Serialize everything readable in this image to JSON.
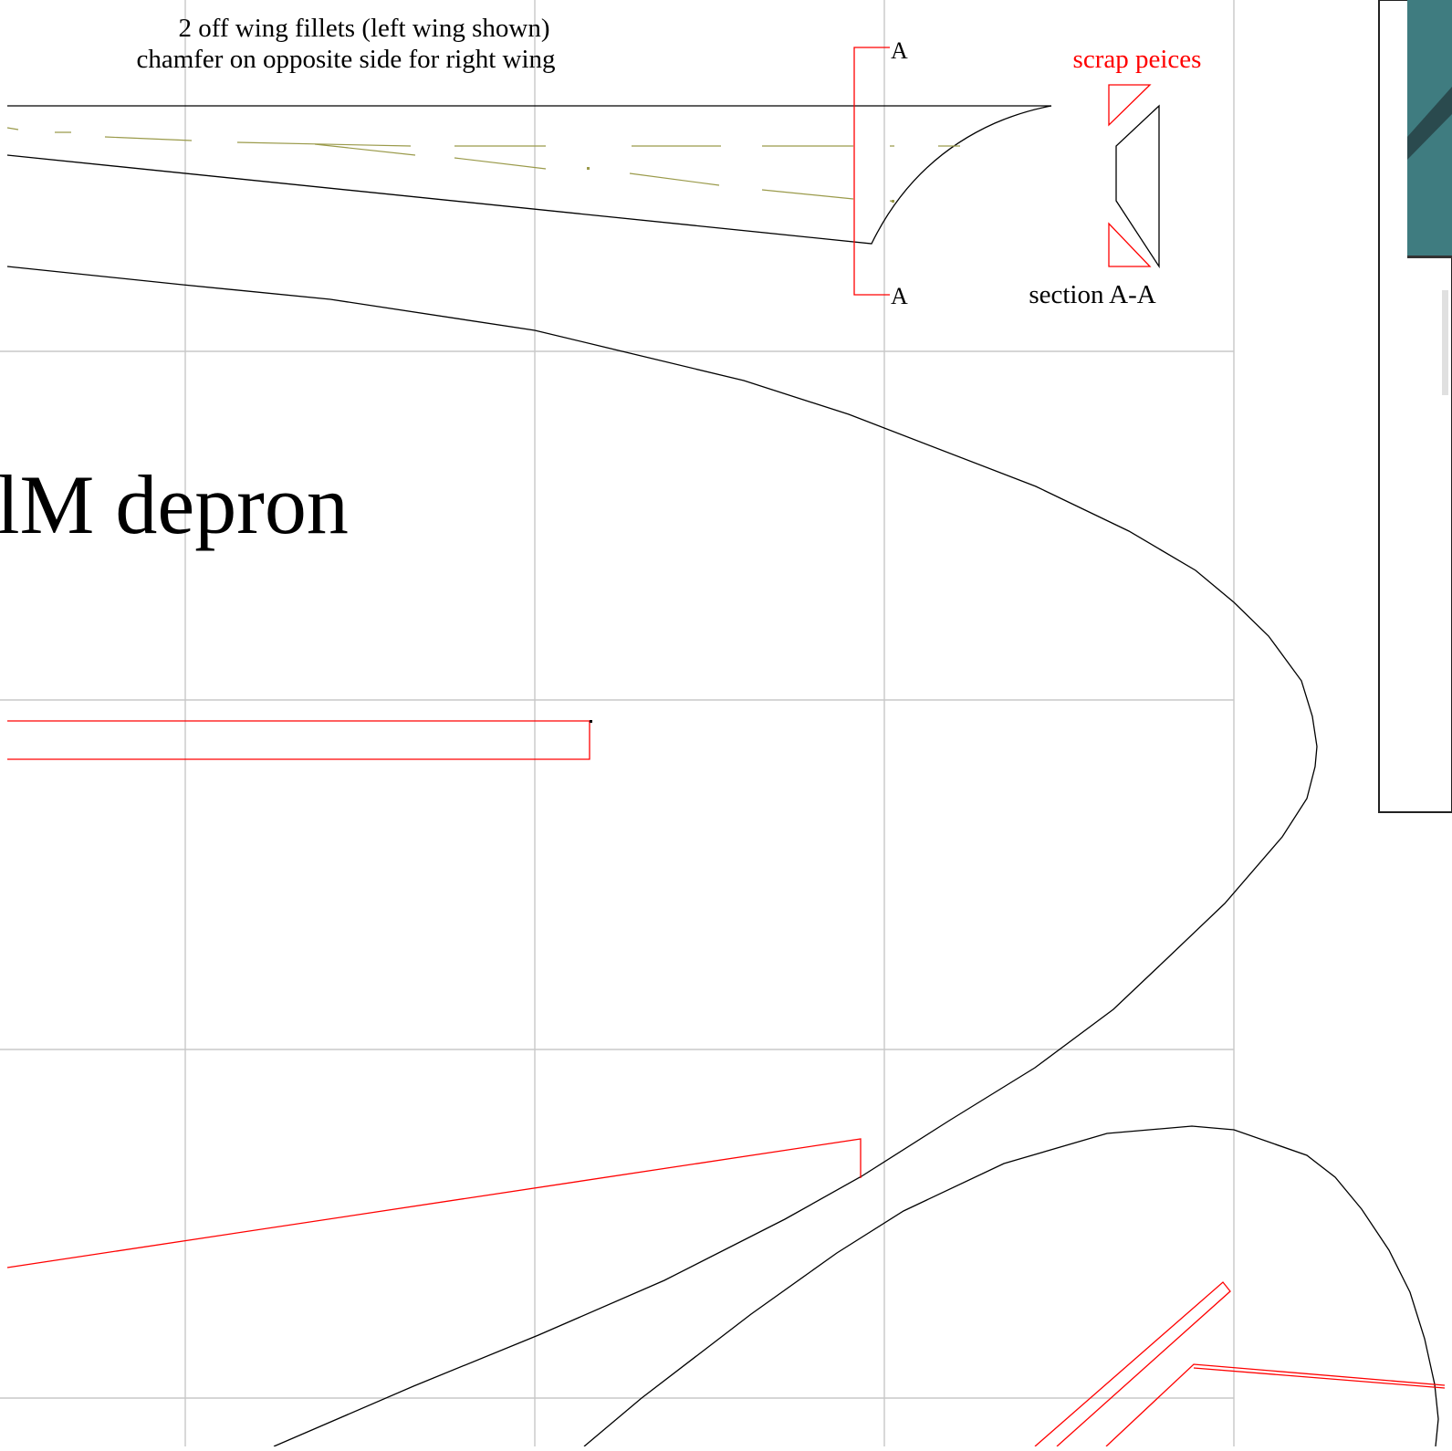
{
  "drawing": {
    "note_line1": "2 off wing fillets (left wing shown)",
    "note_line2": "chamfer on opposite side for right wing",
    "section_marker_top": "A",
    "section_marker_bottom": "A",
    "scrap_label": "scrap peices",
    "section_label": "section A-A",
    "material_label": "lM depron"
  },
  "colors": {
    "cut_line": "#000000",
    "construction_line": "#ff0000",
    "hidden_line": "#9a9a4a",
    "grid": "#c8c8c8",
    "photo_panel": "#3f7c80"
  }
}
